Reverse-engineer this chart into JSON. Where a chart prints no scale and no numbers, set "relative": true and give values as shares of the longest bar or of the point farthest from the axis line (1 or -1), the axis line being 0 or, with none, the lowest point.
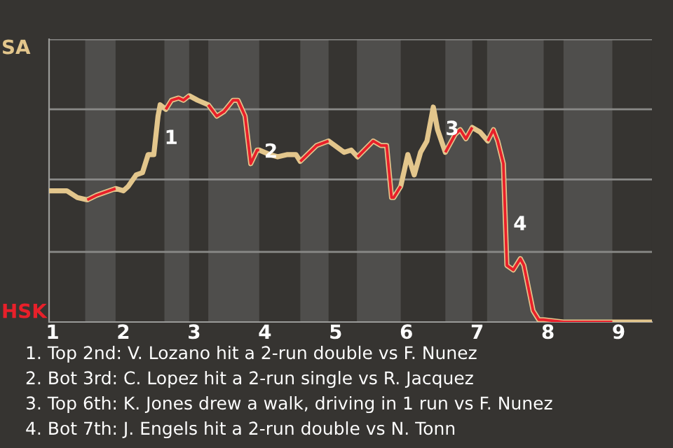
{
  "chart_data": {
    "type": "line",
    "relative": true,
    "x": [
      0.95,
      1.2,
      1.35,
      1.49,
      1.62,
      1.89,
      2.0,
      2.07,
      2.18,
      2.27,
      2.35,
      2.43,
      2.49,
      2.52,
      2.6,
      2.68,
      2.78,
      2.85,
      2.93,
      3.05,
      3.2,
      3.32,
      3.42,
      3.55,
      3.62,
      3.72,
      3.8,
      3.89,
      3.92,
      4.07,
      4.18,
      4.32,
      4.44,
      4.5,
      4.73,
      4.9,
      5.12,
      5.22,
      5.31,
      5.53,
      5.64,
      5.72,
      5.79,
      5.82,
      5.92,
      6.02,
      6.11,
      6.2,
      6.29,
      6.38,
      6.44,
      6.55,
      6.69,
      6.76,
      6.84,
      6.93,
      7.04,
      7.15,
      7.23,
      7.29,
      7.37,
      7.4,
      7.42,
      7.51,
      7.61,
      7.66,
      7.79,
      7.87,
      7.94,
      8.22,
      8.91,
      9.47
    ],
    "series": [
      {
        "name": "SA",
        "color": "#e3c68c",
        "values": [
          0.58,
          0.58,
          0.55,
          0.54,
          0.56,
          0.59,
          0.58,
          0.6,
          0.65,
          0.66,
          0.74,
          0.74,
          0.91,
          0.96,
          0.94,
          0.98,
          0.99,
          0.98,
          1,
          0.98,
          0.96,
          0.91,
          0.93,
          0.98,
          0.98,
          0.91,
          0.7,
          0.76,
          0.76,
          0.74,
          0.73,
          0.74,
          0.74,
          0.71,
          0.78,
          0.8,
          0.75,
          0.76,
          0.73,
          0.8,
          0.78,
          0.78,
          0.55,
          0.55,
          0.6,
          0.74,
          0.65,
          0.75,
          0.8,
          0.95,
          0.85,
          0.75,
          0.83,
          0.85,
          0.81,
          0.86,
          0.84,
          0.8,
          0.85,
          0.8,
          0.7,
          0.43,
          0.25,
          0.23,
          0.28,
          0.25,
          0.05,
          0.01,
          0.01,
          0,
          0,
          0
        ]
      },
      {
        "name": "HSK",
        "color": "#e8202a",
        "values": [
          null,
          null,
          null,
          0.54,
          0.56,
          0.59,
          null,
          null,
          null,
          null,
          null,
          null,
          null,
          null,
          0.94,
          0.98,
          0.99,
          0.98,
          1,
          null,
          0.96,
          0.91,
          0.93,
          0.98,
          0.98,
          0.91,
          0.7,
          0.76,
          0.76,
          null,
          null,
          null,
          null,
          0.71,
          0.78,
          0.8,
          null,
          null,
          0.73,
          0.8,
          0.78,
          0.78,
          0.55,
          0.55,
          0.6,
          null,
          null,
          null,
          null,
          null,
          null,
          0.75,
          0.83,
          0.85,
          0.81,
          0.86,
          null,
          0.8,
          0.85,
          0.8,
          0.7,
          0.43,
          0.25,
          0.23,
          0.28,
          0.25,
          0.05,
          0.01,
          0.01,
          0,
          0,
          null
        ]
      }
    ],
    "xlim": [
      0.95,
      9.47
    ],
    "xticks": [
      1,
      2,
      3,
      4,
      5,
      6,
      7,
      8,
      9
    ],
    "ref_lines": [
      {
        "axis": "y",
        "value": 0.31,
        "color": "#8a8a88"
      },
      {
        "axis": "y",
        "value": 0.63,
        "color": "#8a8a88"
      },
      {
        "axis": "y",
        "value": 0.94,
        "color": "#8a8a88"
      },
      {
        "axis": "y",
        "value": 1.25,
        "color": "#8a8a88"
      }
    ],
    "bands": [
      {
        "axis": "x",
        "from": 1.46,
        "to": 1.89,
        "color": "#4f4e4c"
      },
      {
        "axis": "x",
        "from": 2.58,
        "to": 2.93,
        "color": "#4f4e4c"
      },
      {
        "axis": "x",
        "from": 3.2,
        "to": 3.92,
        "color": "#4f4e4c"
      },
      {
        "axis": "x",
        "from": 4.5,
        "to": 4.9,
        "color": "#4f4e4c"
      },
      {
        "axis": "x",
        "from": 5.3,
        "to": 5.92,
        "color": "#4f4e4c"
      },
      {
        "axis": "x",
        "from": 6.55,
        "to": 6.93,
        "color": "#4f4e4c"
      },
      {
        "axis": "x",
        "from": 7.14,
        "to": 7.94,
        "color": "#4f4e4c"
      },
      {
        "axis": "x",
        "from": 8.22,
        "to": 8.91,
        "color": "#4f4e4c"
      }
    ],
    "annotations": [
      {
        "text": "1",
        "x": 2.47,
        "y": 0.81
      },
      {
        "text": "2",
        "x": 3.88,
        "y": 0.75
      },
      {
        "text": "3",
        "x": 6.44,
        "y": 0.85
      },
      {
        "text": "4",
        "x": 7.4,
        "y": 0.43
      },
      "1. Top 2nd: V. Lozano hit a 2-run double vs F. Nunez",
      "2. Bot 3rd: C. Lopez hit a 2-run single vs R. Jacquez",
      "3. Top 6th: K. Jones drew a walk, driving in 1 run vs F. Nunez",
      "4. Bot 7th: J. Engels hit a 2-run double vs N. Tonn"
    ]
  }
}
